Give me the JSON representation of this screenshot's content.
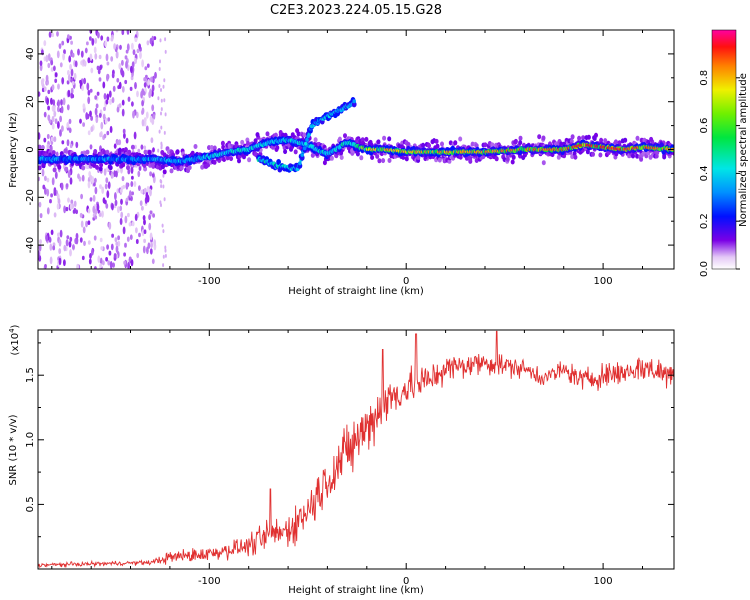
{
  "title": "C2E3.2023.224.05.15.G28",
  "chart_data": [
    {
      "type": "heatmap",
      "xlabel": "Height of straight line (km)",
      "ylabel": "Frequency (Hz)",
      "xlim": [
        -187,
        136
      ],
      "ylim": [
        -50,
        50
      ],
      "xticks": [
        -100,
        0,
        100
      ],
      "yticks": [
        -40,
        -20,
        0,
        20,
        40
      ],
      "colorbar": {
        "label": "Normalized spectral amplitude",
        "range": [
          0,
          1
        ],
        "ticks": [
          0.0,
          0.2,
          0.4,
          0.6,
          0.8
        ],
        "colormap": "rainbow (violet-blue-cyan-green-yellow-orange-red-magenta)"
      },
      "ridge": {
        "x": [
          -187,
          -160,
          -130,
          -115,
          -100,
          -90,
          -80,
          -70,
          -60,
          -50,
          -40,
          -30,
          -20,
          -10,
          0,
          20,
          40,
          60,
          80,
          90,
          100,
          110,
          120,
          136
        ],
        "freq": [
          -4,
          -4,
          -4,
          -5,
          -3,
          -1,
          0,
          3,
          4,
          2,
          -2,
          3,
          0,
          0,
          -1,
          -1,
          -1,
          0,
          0,
          2,
          1,
          0,
          1,
          0
        ],
        "amp": [
          0.35,
          0.38,
          0.4,
          0.45,
          0.5,
          0.55,
          0.55,
          0.5,
          0.5,
          0.5,
          0.55,
          0.6,
          0.75,
          0.8,
          0.8,
          0.82,
          0.82,
          0.86,
          0.88,
          0.92,
          0.92,
          0.9,
          0.88,
          0.85
        ]
      },
      "secondary_branch": {
        "x": [
          -75,
          -65,
          -55,
          -48,
          -40,
          -32,
          -26
        ],
        "freq": [
          -4,
          -7,
          -8,
          10,
          14,
          17,
          20
        ],
        "amp": [
          0.35,
          0.35,
          0.3,
          0.25,
          0.3,
          0.3,
          0.25
        ]
      }
    },
    {
      "type": "line",
      "xlabel": "Height of straight line (km)",
      "ylabel": "SNR (10 * v/v)",
      "y_scale_label": "(x10",
      "y_scale_exponent": "4",
      "xlim": [
        -187,
        136
      ],
      "ylim": [
        0,
        18500
      ],
      "xticks": [
        -100,
        0,
        100
      ],
      "yticks": [
        5000,
        10000,
        15000
      ],
      "ytick_labels": [
        "0.5",
        "1.0",
        "1.5"
      ],
      "color": "#e03030",
      "envelope": {
        "x": [
          -187,
          -130,
          -120,
          -100,
          -80,
          -70,
          -60,
          -50,
          -40,
          -30,
          -20,
          -10,
          0,
          10,
          20,
          40,
          60,
          70,
          80,
          90,
          100,
          110,
          120,
          136
        ],
        "y": [
          300,
          500,
          900,
          1200,
          1800,
          2500,
          3000,
          4500,
          7000,
          9000,
          11000,
          13000,
          14000,
          14500,
          15500,
          16000,
          15500,
          14800,
          15400,
          14600,
          15000,
          15200,
          15600,
          15000
        ],
        "noise": [
          200,
          200,
          600,
          700,
          900,
          1600,
          1600,
          2000,
          2400,
          2600,
          2600,
          2200,
          1800,
          1600,
          1300,
          1100,
          900,
          900,
          900,
          1100,
          1200,
          1200,
          1300,
          1300
        ]
      },
      "spikes": [
        {
          "x": -69,
          "y": 6200
        },
        {
          "x": 5,
          "y": 18200
        },
        {
          "x": -12,
          "y": 17000
        },
        {
          "x": 46,
          "y": 18400
        }
      ]
    }
  ]
}
